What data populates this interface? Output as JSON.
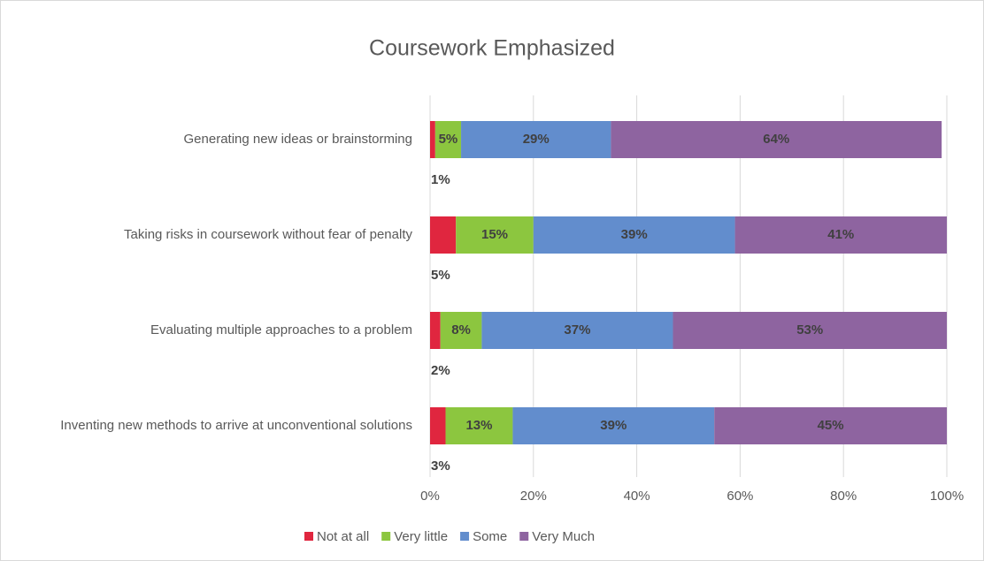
{
  "chart_data": {
    "type": "stacked_bar_horizontal",
    "title": "Coursework Emphasized",
    "categories": [
      "Generating new ideas or brainstorming",
      "Taking risks in coursework without fear of penalty",
      "Evaluating multiple approaches to a problem",
      "Inventing new methods to arrive at unconventional solutions"
    ],
    "series": [
      {
        "name": "Not at all",
        "color": "#e0263f",
        "values": [
          1,
          5,
          2,
          3
        ],
        "value_labels": [
          "1%",
          "5%",
          "2%",
          "3%"
        ]
      },
      {
        "name": "Very little",
        "color": "#8cc63f",
        "values": [
          5,
          15,
          8,
          13
        ],
        "value_labels": [
          "5%",
          "15%",
          "8%",
          "13%"
        ]
      },
      {
        "name": "Some",
        "color": "#628dcd",
        "values": [
          29,
          39,
          37,
          39
        ],
        "value_labels": [
          "29%",
          "39%",
          "37%",
          "39%"
        ]
      },
      {
        "name": "Very Much",
        "color": "#8e64a0",
        "values": [
          64,
          41,
          53,
          45
        ],
        "value_labels": [
          "64%",
          "41%",
          "53%",
          "45%"
        ]
      }
    ],
    "xlim": [
      0,
      100
    ],
    "xticks": [
      {
        "value": 0,
        "label": "0%"
      },
      {
        "value": 20,
        "label": "20%"
      },
      {
        "value": 40,
        "label": "40%"
      },
      {
        "value": 60,
        "label": "60%"
      },
      {
        "value": 80,
        "label": "80%"
      },
      {
        "value": 100,
        "label": "100%"
      }
    ],
    "grid": true,
    "legend": "bottom"
  }
}
